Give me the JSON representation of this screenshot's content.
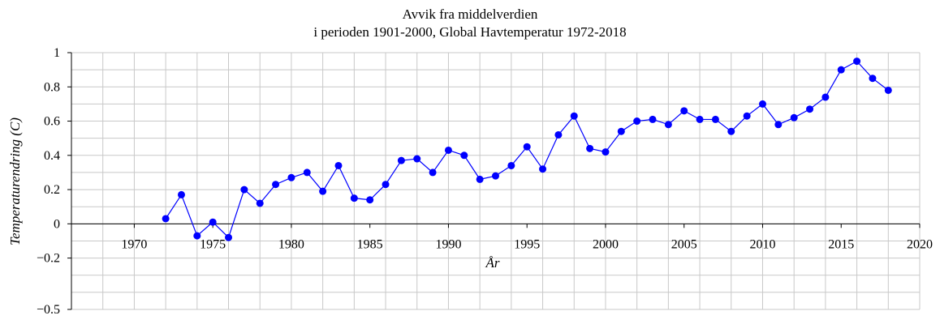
{
  "chart_data": {
    "type": "line",
    "title_lines": [
      "Avvik fra middelverdien",
      "i perioden 1901-2000,  Global Havtemperatur 1972-2018"
    ],
    "xlabel": "År",
    "ylabel": "Temperaturendring (C)",
    "xlim": [
      1966,
      2020
    ],
    "ylim": [
      -0.5,
      1
    ],
    "x_ticks": [
      1970,
      1975,
      1980,
      1985,
      1990,
      1995,
      2000,
      2005,
      2010,
      2015,
      2020
    ],
    "y_ticks": [
      1,
      0.8,
      0.6,
      0.4,
      0.2,
      0,
      -0.2,
      -0.5
    ],
    "y_tick_labels": [
      "1",
      "0.8",
      "0.6",
      "0.4",
      "0.2",
      "0",
      "−0.2",
      "−0.5"
    ],
    "grid": true,
    "line_color": "#0000ff",
    "series": [
      {
        "x": [
          1972,
          1973,
          1974,
          1975,
          1976,
          1977,
          1978,
          1979,
          1980,
          1981,
          1982,
          1983,
          1984,
          1985,
          1986,
          1987,
          1988,
          1989,
          1990,
          1991,
          1992,
          1993,
          1994,
          1995,
          1996,
          1997,
          1998,
          1999,
          2000,
          2001,
          2002,
          2003,
          2004,
          2005,
          2006,
          2007,
          2008,
          2009,
          2010,
          2011,
          2012,
          2013,
          2014,
          2015,
          2016,
          2017,
          2018
        ],
        "values": [
          0.03,
          0.17,
          -0.07,
          0.01,
          -0.08,
          0.2,
          0.12,
          0.23,
          0.27,
          0.3,
          0.19,
          0.34,
          0.15,
          0.14,
          0.23,
          0.37,
          0.38,
          0.3,
          0.43,
          0.4,
          0.26,
          0.28,
          0.34,
          0.45,
          0.32,
          0.52,
          0.63,
          0.44,
          0.42,
          0.54,
          0.6,
          0.61,
          0.58,
          0.66,
          0.61,
          0.61,
          0.54,
          0.63,
          0.7,
          0.58,
          0.62,
          0.67,
          0.74,
          0.9,
          0.95,
          0.85,
          0.78
        ]
      }
    ]
  }
}
